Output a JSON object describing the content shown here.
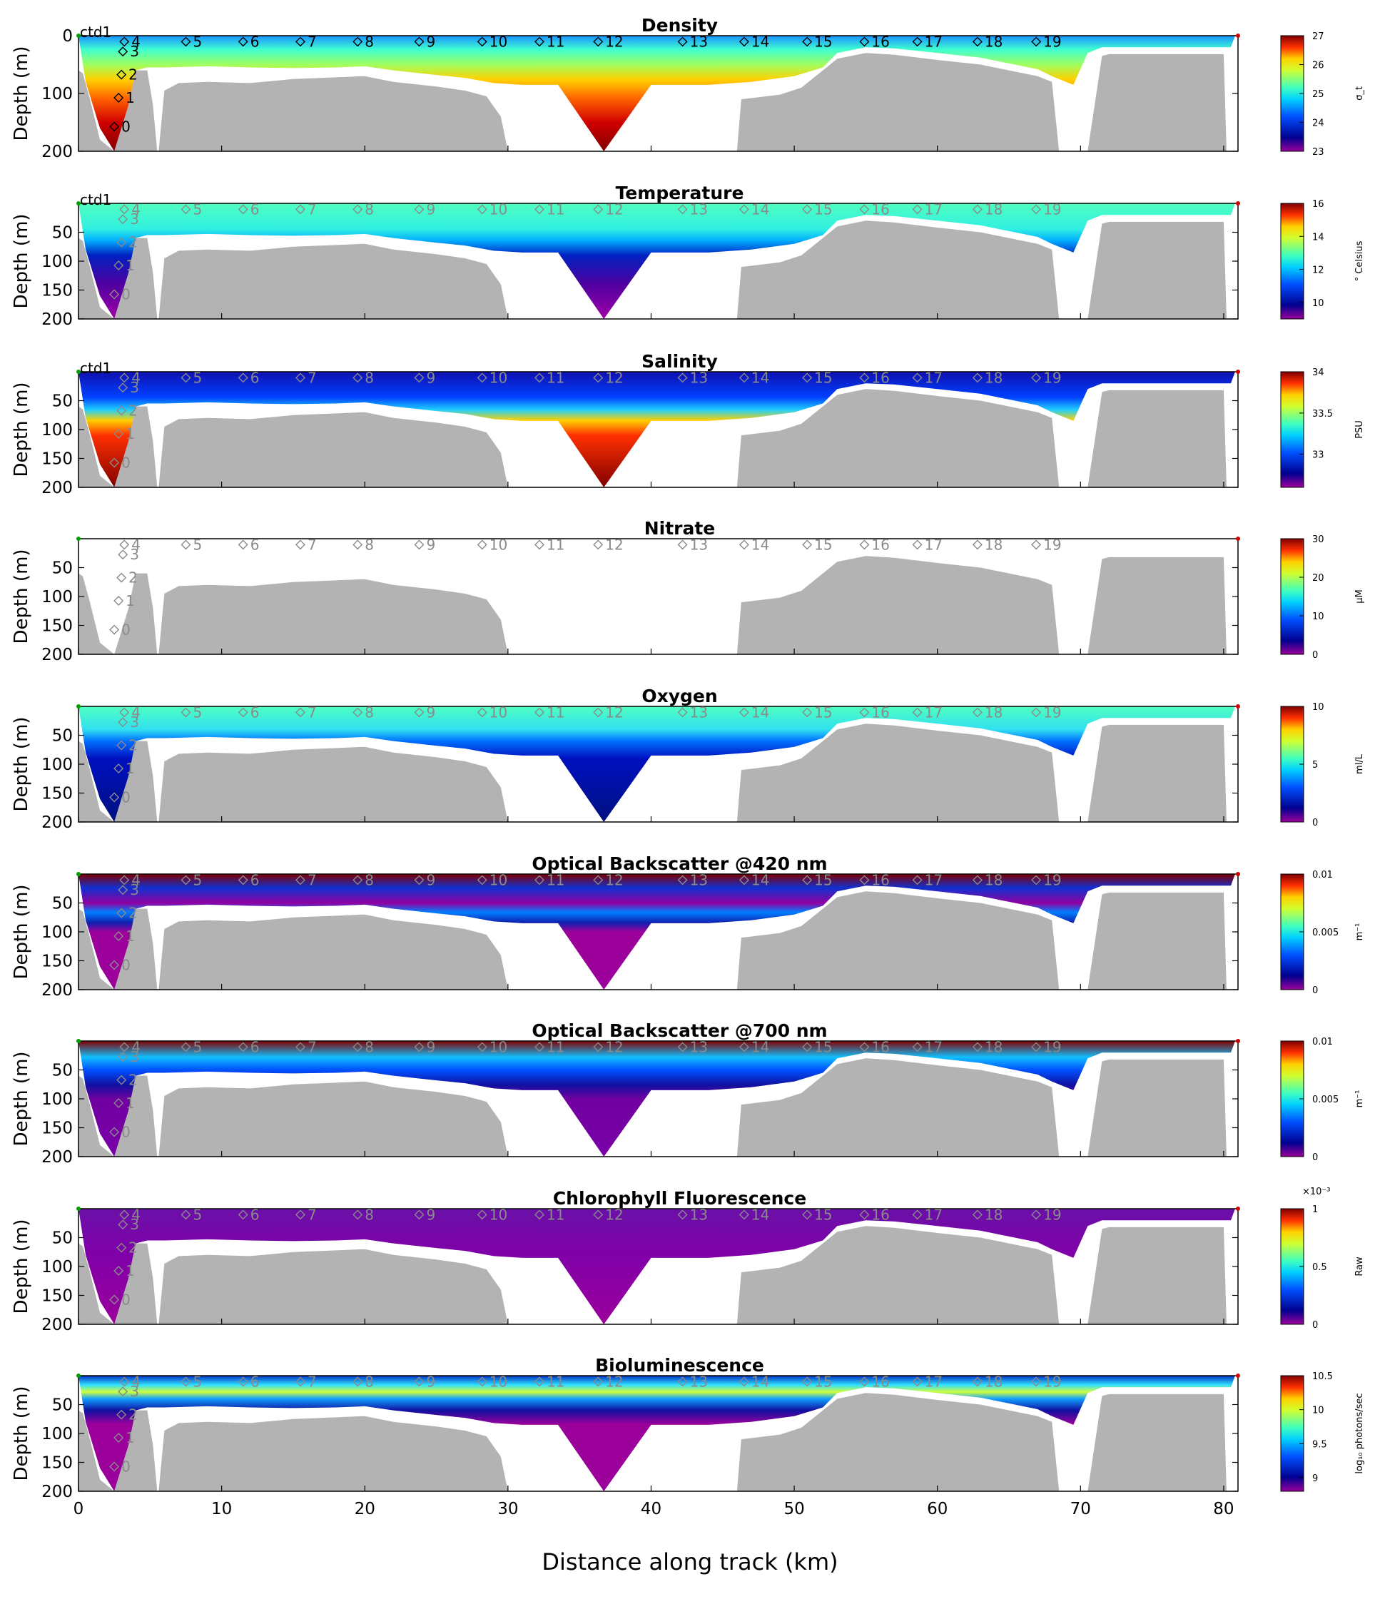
{
  "chart_data": {
    "type": "heatmap",
    "xlabel": "Distance along track (km)",
    "ylabel": "Depth (m)",
    "xlim": [
      0,
      81
    ],
    "ylim": [
      200,
      0
    ],
    "x_ticks": [
      0,
      10,
      20,
      30,
      40,
      50,
      60,
      70,
      80
    ],
    "station_start_label": "ctd1",
    "stations": [
      {
        "label": "0",
        "x": 2.5,
        "depth": 150
      },
      {
        "label": "1",
        "x": 2.8,
        "depth": 100
      },
      {
        "label": "2",
        "x": 3.0,
        "depth": 60
      },
      {
        "label": "3",
        "x": 3.1,
        "depth": 20
      },
      {
        "label": "4",
        "x": 3.2,
        "depth": 3
      },
      {
        "label": "5",
        "x": 7.5,
        "depth": 3
      },
      {
        "label": "6",
        "x": 11.5,
        "depth": 3
      },
      {
        "label": "7",
        "x": 15.5,
        "depth": 3
      },
      {
        "label": "8",
        "x": 19.5,
        "depth": 3
      },
      {
        "label": "9",
        "x": 23.8,
        "depth": 3
      },
      {
        "label": "10",
        "x": 28.2,
        "depth": 3
      },
      {
        "label": "11",
        "x": 32.2,
        "depth": 3
      },
      {
        "label": "12",
        "x": 36.3,
        "depth": 3
      },
      {
        "label": "13",
        "x": 42.2,
        "depth": 3
      },
      {
        "label": "14",
        "x": 46.5,
        "depth": 3
      },
      {
        "label": "15",
        "x": 50.9,
        "depth": 3
      },
      {
        "label": "16",
        "x": 54.9,
        "depth": 3
      },
      {
        "label": "17",
        "x": 58.6,
        "depth": 3
      },
      {
        "label": "18",
        "x": 62.8,
        "depth": 3
      },
      {
        "label": "19",
        "x": 66.9,
        "depth": 3
      }
    ],
    "panels": [
      {
        "title": "Density",
        "y_ticks": [
          0,
          100,
          200
        ],
        "colorbar": {
          "min": 23,
          "max": 27,
          "ticks": [
            "27",
            "26",
            "25",
            "24",
            "23"
          ],
          "units": "σ_t",
          "exponent": ""
        }
      },
      {
        "title": "Temperature",
        "y_ticks": [
          50,
          100,
          150,
          200
        ],
        "colorbar": {
          "min": 9,
          "max": 16,
          "ticks": [
            "16",
            "14",
            "12",
            "10"
          ],
          "units": "° Celsius",
          "exponent": ""
        }
      },
      {
        "title": "Salinity",
        "y_ticks": [
          50,
          100,
          150,
          200
        ],
        "colorbar": {
          "min": 32.6,
          "max": 34,
          "ticks": [
            "34",
            "33.5",
            "33"
          ],
          "units": "PSU",
          "exponent": ""
        }
      },
      {
        "title": "Nitrate",
        "y_ticks": [
          50,
          100,
          150,
          200
        ],
        "colorbar": {
          "min": 0,
          "max": 30,
          "ticks": [
            "30",
            "20",
            "10",
            "0"
          ],
          "units": "μM",
          "exponent": ""
        }
      },
      {
        "title": "Oxygen",
        "y_ticks": [
          50,
          100,
          150,
          200
        ],
        "colorbar": {
          "min": 0,
          "max": 10,
          "ticks": [
            "10",
            "5",
            "0"
          ],
          "units": "ml/L",
          "exponent": ""
        }
      },
      {
        "title": "Optical Backscatter @420 nm",
        "y_ticks": [
          50,
          100,
          150,
          200
        ],
        "colorbar": {
          "min": 0,
          "max": 0.01,
          "ticks": [
            "0.01",
            "0.005",
            "0"
          ],
          "units": "m⁻¹",
          "exponent": ""
        }
      },
      {
        "title": "Optical Backscatter @700 nm",
        "y_ticks": [
          50,
          100,
          150,
          200
        ],
        "colorbar": {
          "min": 0,
          "max": 0.01,
          "ticks": [
            "0.01",
            "0.005",
            "0"
          ],
          "units": "m⁻¹",
          "exponent": ""
        }
      },
      {
        "title": "Chlorophyll Fluorescence",
        "y_ticks": [
          50,
          100,
          150,
          200
        ],
        "colorbar": {
          "min": 0,
          "max": 1,
          "ticks": [
            "1",
            "0.5",
            "0"
          ],
          "units": "Raw",
          "exponent": "×10⁻³"
        }
      },
      {
        "title": "Bioluminescence",
        "y_ticks": [
          50,
          100,
          150,
          200
        ],
        "colorbar": {
          "min": 8.8,
          "max": 10.5,
          "ticks": [
            "10.5",
            "10",
            "9.5",
            "9"
          ],
          "units": "log₁₀ photons/sec",
          "exponent": ""
        }
      }
    ]
  }
}
